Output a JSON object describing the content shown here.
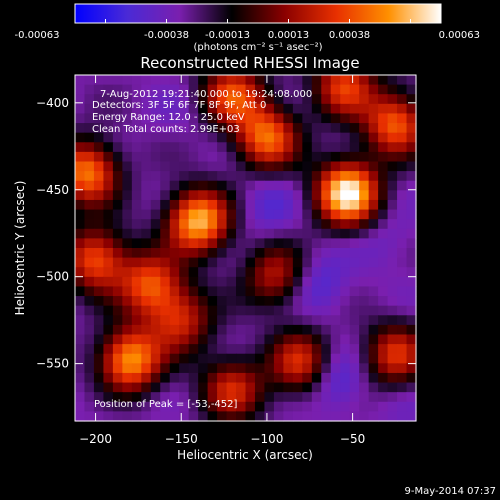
{
  "colorbar": {
    "tick_labels": [
      "-0.00063",
      "-0.00038",
      "-0.00013",
      "0.00013",
      "0.00038",
      "0.00063"
    ],
    "units": "(photons cm⁻² s⁻¹ asec⁻²)",
    "range": [
      -0.00063,
      0.00063
    ],
    "gradient_stops": [
      "#0000ff",
      "#4a2ad6",
      "#7a1fae",
      "#000000",
      "#8a0000",
      "#e83000",
      "#ff9000",
      "#ffffff"
    ]
  },
  "annotations": {
    "time_range": "7-Aug-2012 19:21:40.000 to 19:24:08.000",
    "detectors": "Detectors: 3F 5F 6F 7F 8F 9F, Att 0",
    "energy": "Energy Range: 12.0 - 25.0 keV",
    "clean": "Clean     Total counts: 2.99E+03",
    "peak": "Position of Peak = [-53,-452]"
  },
  "footer": {
    "timestamp": "9-May-2014 07:37"
  },
  "chart_data": {
    "type": "heatmap",
    "title": "Reconstructed RHESSI Image",
    "xlabel": "Heliocentric X (arcsec)",
    "ylabel": "Heliocentric Y (arcsec)",
    "xlim": [
      -212,
      -13
    ],
    "ylim": [
      -583,
      -384
    ],
    "x_ticks": [
      -200,
      -150,
      -100,
      -50
    ],
    "y_ticks": [
      -400,
      -450,
      -500,
      -550
    ],
    "x_tick_labels": [
      "−200",
      "−150",
      "−100",
      "−50"
    ],
    "y_tick_labels": [
      "−400",
      "−450",
      "−500",
      "−550"
    ],
    "grid": false,
    "peak_position": [
      -53,
      -452
    ],
    "sources": [
      {
        "x": -53,
        "y": -452,
        "value": 0.00063
      },
      {
        "x": -140,
        "y": -468,
        "value": 0.00052
      },
      {
        "x": -205,
        "y": -440,
        "value": 0.0004
      },
      {
        "x": -180,
        "y": -548,
        "value": 0.00046
      },
      {
        "x": -100,
        "y": -420,
        "value": 0.00036
      },
      {
        "x": -25,
        "y": -412,
        "value": 0.00034
      },
      {
        "x": -200,
        "y": -490,
        "value": 0.00032
      },
      {
        "x": -168,
        "y": -505,
        "value": 0.0003
      },
      {
        "x": -120,
        "y": -395,
        "value": 0.00028
      },
      {
        "x": -55,
        "y": -390,
        "value": 0.00026
      },
      {
        "x": -80,
        "y": -550,
        "value": 0.00024
      },
      {
        "x": -25,
        "y": -545,
        "value": 0.00022
      },
      {
        "x": -120,
        "y": -565,
        "value": 0.0002
      },
      {
        "x": -150,
        "y": -525,
        "value": 0.00018
      },
      {
        "x": -95,
        "y": -500,
        "value": 0.00016
      }
    ],
    "negative_regions": [
      {
        "x": -100,
        "y": -460,
        "value": -0.0004
      },
      {
        "x": -70,
        "y": -505,
        "value": -0.00045
      },
      {
        "x": -60,
        "y": -560,
        "value": -0.0005
      },
      {
        "x": -30,
        "y": -480,
        "value": -0.00035
      },
      {
        "x": -150,
        "y": -405,
        "value": -0.0003
      },
      {
        "x": -195,
        "y": -575,
        "value": -0.0003
      },
      {
        "x": -130,
        "y": -540,
        "value": -0.00025
      },
      {
        "x": -20,
        "y": -580,
        "value": -0.0003
      }
    ]
  }
}
